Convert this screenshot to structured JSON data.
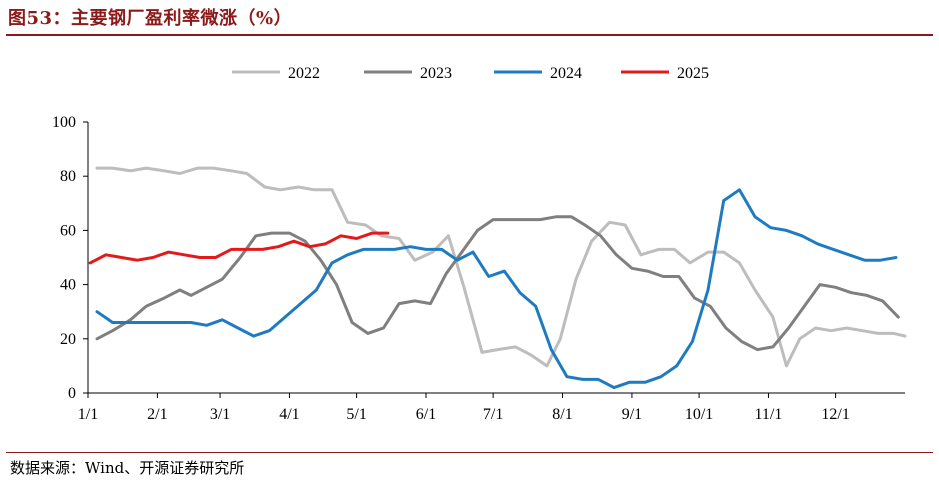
{
  "figure_title": "图53：主要钢厂盈利率微涨（%）",
  "source_note": "数据来源：Wind、开源证券研究所",
  "chart_data": {
    "type": "line",
    "title": "",
    "xlabel": "",
    "ylabel": "",
    "ylim": [
      0,
      100
    ],
    "yticks": [
      0,
      20,
      40,
      60,
      80,
      100
    ],
    "xlim": [
      0,
      365
    ],
    "xticks": [
      {
        "x": 0,
        "label": "1/1"
      },
      {
        "x": 31,
        "label": "2/1"
      },
      {
        "x": 59,
        "label": "3/1"
      },
      {
        "x": 90,
        "label": "4/1"
      },
      {
        "x": 120,
        "label": "5/1"
      },
      {
        "x": 151,
        "label": "6/1"
      },
      {
        "x": 181,
        "label": "7/1"
      },
      {
        "x": 212,
        "label": "8/1"
      },
      {
        "x": 243,
        "label": "9/1"
      },
      {
        "x": 273,
        "label": "10/1"
      },
      {
        "x": 304,
        "label": "11/1"
      },
      {
        "x": 334,
        "label": "12/1"
      }
    ],
    "grid": false,
    "legend": "top",
    "series": [
      {
        "name": "2022",
        "color": "#BDBDBD",
        "points": [
          [
            4,
            83
          ],
          [
            11,
            83
          ],
          [
            19,
            82
          ],
          [
            26,
            83
          ],
          [
            34,
            82
          ],
          [
            41,
            81
          ],
          [
            49,
            83
          ],
          [
            56,
            83
          ],
          [
            64,
            82
          ],
          [
            71,
            81
          ],
          [
            79,
            76
          ],
          [
            86,
            75
          ],
          [
            94,
            76
          ],
          [
            101,
            75
          ],
          [
            109,
            75
          ],
          [
            116,
            63
          ],
          [
            124,
            62
          ],
          [
            131,
            58
          ],
          [
            139,
            57
          ],
          [
            146,
            49
          ],
          [
            154,
            52
          ],
          [
            161,
            58
          ],
          [
            168,
            39
          ],
          [
            176,
            15
          ],
          [
            183,
            16
          ],
          [
            191,
            17
          ],
          [
            198,
            14
          ],
          [
            205,
            10
          ],
          [
            211,
            20
          ],
          [
            218,
            42
          ],
          [
            225,
            56
          ],
          [
            233,
            63
          ],
          [
            240,
            62
          ],
          [
            247,
            51
          ],
          [
            255,
            53
          ],
          [
            262,
            53
          ],
          [
            269,
            48
          ],
          [
            277,
            52
          ],
          [
            284,
            52
          ],
          [
            291,
            48
          ],
          [
            298,
            38
          ],
          [
            306,
            28
          ],
          [
            312,
            10
          ],
          [
            318,
            20
          ],
          [
            325,
            24
          ],
          [
            332,
            23
          ],
          [
            339,
            24
          ],
          [
            346,
            23
          ],
          [
            353,
            22
          ],
          [
            360,
            22
          ],
          [
            365,
            21
          ]
        ]
      },
      {
        "name": "2023",
        "color": "#7F7F7F",
        "points": [
          [
            4,
            20
          ],
          [
            11,
            23
          ],
          [
            19,
            27
          ],
          [
            26,
            32
          ],
          [
            34,
            35
          ],
          [
            41,
            38
          ],
          [
            46,
            36
          ],
          [
            53,
            39
          ],
          [
            60,
            42
          ],
          [
            68,
            50
          ],
          [
            75,
            58
          ],
          [
            82,
            59
          ],
          [
            90,
            59
          ],
          [
            97,
            56
          ],
          [
            104,
            49
          ],
          [
            111,
            40
          ],
          [
            118,
            26
          ],
          [
            125,
            22
          ],
          [
            132,
            24
          ],
          [
            139,
            33
          ],
          [
            146,
            34
          ],
          [
            153,
            33
          ],
          [
            160,
            44
          ],
          [
            167,
            52
          ],
          [
            174,
            60
          ],
          [
            181,
            64
          ],
          [
            188,
            64
          ],
          [
            195,
            64
          ],
          [
            202,
            64
          ],
          [
            209,
            65
          ],
          [
            216,
            65
          ],
          [
            222,
            62
          ],
          [
            229,
            58
          ],
          [
            236,
            51
          ],
          [
            243,
            46
          ],
          [
            250,
            45
          ],
          [
            257,
            43
          ],
          [
            264,
            43
          ],
          [
            271,
            35
          ],
          [
            278,
            32
          ],
          [
            285,
            24
          ],
          [
            292,
            19
          ],
          [
            299,
            16
          ],
          [
            306,
            17
          ],
          [
            313,
            24
          ],
          [
            320,
            32
          ],
          [
            327,
            40
          ],
          [
            334,
            39
          ],
          [
            341,
            37
          ],
          [
            348,
            36
          ],
          [
            355,
            34
          ],
          [
            362,
            28
          ]
        ]
      },
      {
        "name": "2024",
        "color": "#1F7BC1",
        "points": [
          [
            4,
            30
          ],
          [
            11,
            26
          ],
          [
            18,
            26
          ],
          [
            25,
            26
          ],
          [
            32,
            26
          ],
          [
            39,
            26
          ],
          [
            46,
            26
          ],
          [
            53,
            25
          ],
          [
            60,
            27
          ],
          [
            67,
            24
          ],
          [
            74,
            21
          ],
          [
            81,
            23
          ],
          [
            88,
            28
          ],
          [
            95,
            33
          ],
          [
            102,
            38
          ],
          [
            109,
            48
          ],
          [
            116,
            51
          ],
          [
            123,
            53
          ],
          [
            130,
            53
          ],
          [
            137,
            53
          ],
          [
            144,
            54
          ],
          [
            151,
            53
          ],
          [
            158,
            53
          ],
          [
            165,
            49
          ],
          [
            172,
            52
          ],
          [
            179,
            43
          ],
          [
            186,
            45
          ],
          [
            193,
            37
          ],
          [
            200,
            32
          ],
          [
            207,
            16
          ],
          [
            214,
            6
          ],
          [
            221,
            5
          ],
          [
            228,
            5
          ],
          [
            235,
            2
          ],
          [
            242,
            4
          ],
          [
            249,
            4
          ],
          [
            256,
            6
          ],
          [
            263,
            10
          ],
          [
            270,
            19
          ],
          [
            277,
            38
          ],
          [
            284,
            71
          ],
          [
            291,
            75
          ],
          [
            298,
            65
          ],
          [
            305,
            61
          ],
          [
            312,
            60
          ],
          [
            319,
            58
          ],
          [
            326,
            55
          ],
          [
            333,
            53
          ],
          [
            340,
            51
          ],
          [
            347,
            49
          ],
          [
            354,
            49
          ],
          [
            361,
            50
          ]
        ]
      },
      {
        "name": "2025",
        "color": "#E31A1C",
        "points": [
          [
            1,
            48
          ],
          [
            8,
            51
          ],
          [
            15,
            50
          ],
          [
            22,
            49
          ],
          [
            29,
            50
          ],
          [
            36,
            52
          ],
          [
            43,
            51
          ],
          [
            50,
            50
          ],
          [
            57,
            50
          ],
          [
            64,
            53
          ],
          [
            71,
            53
          ],
          [
            78,
            53
          ],
          [
            85,
            54
          ],
          [
            92,
            56
          ],
          [
            99,
            54
          ],
          [
            106,
            55
          ],
          [
            113,
            58
          ],
          [
            120,
            57
          ],
          [
            127,
            59
          ],
          [
            134,
            59
          ]
        ]
      }
    ]
  }
}
